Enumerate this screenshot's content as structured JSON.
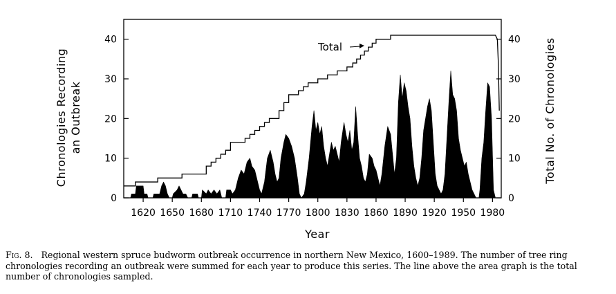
{
  "caption": {
    "label": "Fig. 8.",
    "text": "Regional western spruce budworm outbreak occurrence in northern New Mexico, 1600–1989. The number of tree ring chronologies recording an outbreak were summed for each year to produce this series. The line above the area graph is the total number of chronologies sampled."
  },
  "chart_data": {
    "type": "area",
    "xlabel": "Year",
    "ylabel_left": [
      "Chronologies Recording",
      "an Outbreak"
    ],
    "ylabel_right": "Total No. of Chronologies",
    "xlim": [
      1600,
      1989
    ],
    "ylim": [
      0,
      45
    ],
    "x_ticks": [
      1620,
      1650,
      1680,
      1710,
      1740,
      1770,
      1800,
      1830,
      1860,
      1890,
      1920,
      1950,
      1980
    ],
    "y_ticks": [
      0,
      10,
      20,
      30,
      40
    ],
    "annotation": "Total",
    "grid": false,
    "series": [
      {
        "name": "Total",
        "style": "line",
        "points": [
          [
            1600,
            3
          ],
          [
            1612,
            3
          ],
          [
            1612,
            4
          ],
          [
            1635,
            4
          ],
          [
            1635,
            5
          ],
          [
            1660,
            5
          ],
          [
            1660,
            6
          ],
          [
            1685,
            6
          ],
          [
            1685,
            8
          ],
          [
            1690,
            8
          ],
          [
            1690,
            9
          ],
          [
            1695,
            9
          ],
          [
            1695,
            10
          ],
          [
            1700,
            10
          ],
          [
            1700,
            11
          ],
          [
            1705,
            11
          ],
          [
            1705,
            12
          ],
          [
            1710,
            12
          ],
          [
            1710,
            14
          ],
          [
            1725,
            14
          ],
          [
            1725,
            15
          ],
          [
            1730,
            15
          ],
          [
            1730,
            16
          ],
          [
            1735,
            16
          ],
          [
            1735,
            17
          ],
          [
            1740,
            17
          ],
          [
            1740,
            18
          ],
          [
            1745,
            18
          ],
          [
            1745,
            19
          ],
          [
            1750,
            19
          ],
          [
            1750,
            20
          ],
          [
            1760,
            20
          ],
          [
            1760,
            22
          ],
          [
            1765,
            22
          ],
          [
            1765,
            24
          ],
          [
            1770,
            24
          ],
          [
            1770,
            26
          ],
          [
            1780,
            26
          ],
          [
            1780,
            27
          ],
          [
            1785,
            27
          ],
          [
            1785,
            28
          ],
          [
            1790,
            28
          ],
          [
            1790,
            29
          ],
          [
            1800,
            29
          ],
          [
            1800,
            30
          ],
          [
            1810,
            30
          ],
          [
            1810,
            31
          ],
          [
            1820,
            31
          ],
          [
            1820,
            32
          ],
          [
            1830,
            32
          ],
          [
            1830,
            33
          ],
          [
            1836,
            33
          ],
          [
            1836,
            34
          ],
          [
            1840,
            34
          ],
          [
            1840,
            35
          ],
          [
            1844,
            35
          ],
          [
            1844,
            36
          ],
          [
            1848,
            36
          ],
          [
            1848,
            37
          ],
          [
            1852,
            37
          ],
          [
            1852,
            38
          ],
          [
            1856,
            38
          ],
          [
            1856,
            39
          ],
          [
            1860,
            39
          ],
          [
            1860,
            40
          ],
          [
            1875,
            40
          ],
          [
            1875,
            41
          ],
          [
            1983,
            41
          ],
          [
            1985,
            40
          ],
          [
            1986,
            34
          ],
          [
            1987,
            22
          ]
        ]
      },
      {
        "name": "Chronologies Recording an Outbreak",
        "style": "area",
        "points": [
          [
            1600,
            0
          ],
          [
            1607,
            0
          ],
          [
            1608,
            1
          ],
          [
            1612,
            1
          ],
          [
            1613,
            3
          ],
          [
            1620,
            3
          ],
          [
            1621,
            1
          ],
          [
            1624,
            1
          ],
          [
            1625,
            0
          ],
          [
            1630,
            0
          ],
          [
            1631,
            1
          ],
          [
            1637,
            1
          ],
          [
            1639,
            3
          ],
          [
            1641,
            4
          ],
          [
            1643,
            3
          ],
          [
            1645,
            1
          ],
          [
            1647,
            0
          ],
          [
            1650,
            0
          ],
          [
            1651,
            1
          ],
          [
            1655,
            2
          ],
          [
            1657,
            3
          ],
          [
            1659,
            2
          ],
          [
            1661,
            1
          ],
          [
            1664,
            1
          ],
          [
            1666,
            0
          ],
          [
            1670,
            0
          ],
          [
            1671,
            1
          ],
          [
            1676,
            1
          ],
          [
            1677,
            0
          ],
          [
            1680,
            0
          ],
          [
            1681,
            2
          ],
          [
            1685,
            1
          ],
          [
            1687,
            2
          ],
          [
            1690,
            1
          ],
          [
            1693,
            2
          ],
          [
            1696,
            1
          ],
          [
            1699,
            2
          ],
          [
            1701,
            0
          ],
          [
            1705,
            0
          ],
          [
            1706,
            2
          ],
          [
            1710,
            2
          ],
          [
            1712,
            1
          ],
          [
            1715,
            2
          ],
          [
            1718,
            5
          ],
          [
            1721,
            7
          ],
          [
            1724,
            6
          ],
          [
            1727,
            9
          ],
          [
            1730,
            10
          ],
          [
            1732,
            8
          ],
          [
            1735,
            7
          ],
          [
            1738,
            4
          ],
          [
            1740,
            2
          ],
          [
            1742,
            1
          ],
          [
            1745,
            4
          ],
          [
            1748,
            10
          ],
          [
            1751,
            12
          ],
          [
            1754,
            9
          ],
          [
            1756,
            6
          ],
          [
            1758,
            4
          ],
          [
            1760,
            5
          ],
          [
            1762,
            10
          ],
          [
            1765,
            14
          ],
          [
            1767,
            16
          ],
          [
            1770,
            15
          ],
          [
            1773,
            13
          ],
          [
            1776,
            10
          ],
          [
            1779,
            5
          ],
          [
            1781,
            1
          ],
          [
            1783,
            0
          ],
          [
            1786,
            1
          ],
          [
            1788,
            4
          ],
          [
            1791,
            10
          ],
          [
            1794,
            18
          ],
          [
            1796,
            22
          ],
          [
            1798,
            17
          ],
          [
            1800,
            19
          ],
          [
            1802,
            16
          ],
          [
            1804,
            18
          ],
          [
            1806,
            13
          ],
          [
            1808,
            10
          ],
          [
            1810,
            8
          ],
          [
            1812,
            11
          ],
          [
            1814,
            14
          ],
          [
            1816,
            12
          ],
          [
            1818,
            13
          ],
          [
            1820,
            11
          ],
          [
            1822,
            9
          ],
          [
            1824,
            14
          ],
          [
            1827,
            19
          ],
          [
            1829,
            16
          ],
          [
            1831,
            14
          ],
          [
            1833,
            17
          ],
          [
            1835,
            12
          ],
          [
            1837,
            14
          ],
          [
            1839,
            23
          ],
          [
            1841,
            16
          ],
          [
            1843,
            10
          ],
          [
            1845,
            8
          ],
          [
            1847,
            5
          ],
          [
            1849,
            4
          ],
          [
            1851,
            6
          ],
          [
            1853,
            11
          ],
          [
            1856,
            10
          ],
          [
            1858,
            8
          ],
          [
            1860,
            7
          ],
          [
            1862,
            5
          ],
          [
            1864,
            3
          ],
          [
            1866,
            6
          ],
          [
            1869,
            13
          ],
          [
            1872,
            18
          ],
          [
            1875,
            16
          ],
          [
            1877,
            11
          ],
          [
            1879,
            6
          ],
          [
            1881,
            10
          ],
          [
            1883,
            24
          ],
          [
            1885,
            31
          ],
          [
            1887,
            25
          ],
          [
            1889,
            29
          ],
          [
            1891,
            27
          ],
          [
            1893,
            23
          ],
          [
            1895,
            20
          ],
          [
            1897,
            13
          ],
          [
            1899,
            8
          ],
          [
            1901,
            5
          ],
          [
            1903,
            3
          ],
          [
            1905,
            5
          ],
          [
            1907,
            10
          ],
          [
            1909,
            17
          ],
          [
            1911,
            20
          ],
          [
            1913,
            23
          ],
          [
            1915,
            25
          ],
          [
            1917,
            22
          ],
          [
            1919,
            14
          ],
          [
            1921,
            6
          ],
          [
            1923,
            3
          ],
          [
            1925,
            2
          ],
          [
            1927,
            1
          ],
          [
            1929,
            2
          ],
          [
            1931,
            6
          ],
          [
            1933,
            15
          ],
          [
            1935,
            24
          ],
          [
            1937,
            32
          ],
          [
            1939,
            26
          ],
          [
            1941,
            25
          ],
          [
            1943,
            22
          ],
          [
            1945,
            15
          ],
          [
            1947,
            12
          ],
          [
            1949,
            10
          ],
          [
            1951,
            8
          ],
          [
            1953,
            9
          ],
          [
            1955,
            6
          ],
          [
            1957,
            4
          ],
          [
            1959,
            2
          ],
          [
            1961,
            1
          ],
          [
            1963,
            0
          ],
          [
            1966,
            0
          ],
          [
            1967,
            2
          ],
          [
            1969,
            10
          ],
          [
            1971,
            14
          ],
          [
            1973,
            22
          ],
          [
            1975,
            29
          ],
          [
            1977,
            28
          ],
          [
            1979,
            20
          ],
          [
            1981,
            2
          ],
          [
            1983,
            0
          ]
        ]
      }
    ]
  }
}
